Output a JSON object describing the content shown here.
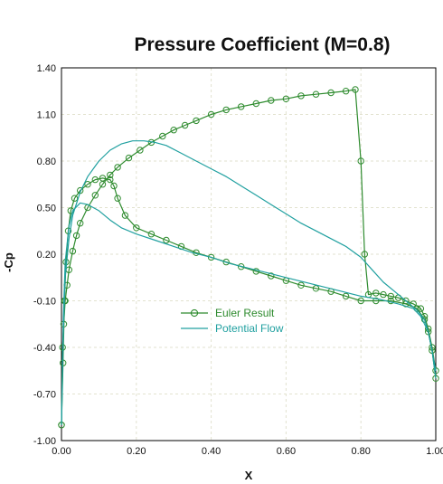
{
  "chart_data": {
    "type": "line",
    "title": "Pressure Coefficient (M=0.8)",
    "xlabel": "X",
    "ylabel": "-Cp",
    "xlim": [
      0,
      1
    ],
    "ylim": [
      -1,
      1.4
    ],
    "x_ticks": [
      "0.00",
      "0.20",
      "0.40",
      "0.60",
      "0.80",
      "1.00"
    ],
    "y_ticks": [
      "1.40",
      "1.10",
      "0.80",
      "0.50",
      "0.20",
      "-0.10",
      "-0.40",
      "-0.70",
      "-1.00"
    ],
    "grid": true,
    "legend_position": "center",
    "colors": {
      "euler": "#2e8b2e",
      "potential": "#20a0a0",
      "grid": "#e2e2cf"
    },
    "series": [
      {
        "name": "Euler Result",
        "marker": "circle",
        "segments": [
          {
            "part": "upper surface",
            "x": [
              0.0,
              0.003,
              0.006,
              0.01,
              0.015,
              0.02,
              0.03,
              0.04,
              0.05,
              0.07,
              0.09,
              0.11,
              0.13,
              0.15,
              0.18,
              0.21,
              0.24,
              0.27,
              0.3,
              0.33,
              0.36,
              0.4,
              0.44,
              0.48,
              0.52,
              0.56,
              0.6,
              0.64,
              0.68,
              0.72,
              0.76,
              0.785,
              0.8,
              0.81,
              0.82,
              0.84,
              0.86,
              0.88,
              0.9,
              0.92,
              0.94,
              0.96,
              0.97,
              0.98,
              0.99,
              1.0
            ],
            "y": [
              -0.9,
              -0.4,
              -0.25,
              -0.1,
              0.0,
              0.1,
              0.22,
              0.32,
              0.4,
              0.5,
              0.58,
              0.65,
              0.71,
              0.76,
              0.82,
              0.87,
              0.92,
              0.96,
              1.0,
              1.03,
              1.06,
              1.1,
              1.13,
              1.15,
              1.17,
              1.19,
              1.2,
              1.22,
              1.23,
              1.24,
              1.25,
              1.26,
              0.8,
              0.2,
              -0.06,
              -0.05,
              -0.06,
              -0.07,
              -0.08,
              -0.1,
              -0.12,
              -0.15,
              -0.2,
              -0.28,
              -0.4,
              -0.55
            ]
          },
          {
            "part": "lower surface",
            "x": [
              0.0,
              0.004,
              0.008,
              0.012,
              0.018,
              0.025,
              0.035,
              0.05,
              0.07,
              0.09,
              0.11,
              0.13,
              0.14,
              0.15,
              0.17,
              0.2,
              0.24,
              0.28,
              0.32,
              0.36,
              0.4,
              0.44,
              0.48,
              0.52,
              0.56,
              0.6,
              0.64,
              0.68,
              0.72,
              0.76,
              0.8,
              0.84,
              0.88,
              0.92,
              0.95,
              0.97,
              0.98,
              0.99,
              1.0
            ],
            "y": [
              -0.9,
              -0.5,
              -0.1,
              0.15,
              0.35,
              0.48,
              0.56,
              0.61,
              0.65,
              0.68,
              0.69,
              0.68,
              0.64,
              0.56,
              0.45,
              0.37,
              0.33,
              0.29,
              0.25,
              0.21,
              0.18,
              0.15,
              0.12,
              0.09,
              0.06,
              0.03,
              0.0,
              -0.02,
              -0.04,
              -0.07,
              -0.1,
              -0.1,
              -0.1,
              -0.12,
              -0.15,
              -0.22,
              -0.3,
              -0.42,
              -0.6
            ]
          }
        ]
      },
      {
        "name": "Potential Flow",
        "marker": "none",
        "segments": [
          {
            "part": "upper surface",
            "x": [
              0.0,
              0.005,
              0.01,
              0.02,
              0.03,
              0.05,
              0.07,
              0.1,
              0.13,
              0.16,
              0.19,
              0.22,
              0.25,
              0.28,
              0.32,
              0.36,
              0.4,
              0.44,
              0.48,
              0.52,
              0.56,
              0.6,
              0.64,
              0.68,
              0.72,
              0.76,
              0.8,
              0.83,
              0.86,
              0.89,
              0.92,
              0.95,
              0.97,
              0.98,
              0.99,
              1.0
            ],
            "y": [
              -0.9,
              -0.3,
              0.05,
              0.3,
              0.45,
              0.6,
              0.7,
              0.8,
              0.87,
              0.91,
              0.93,
              0.93,
              0.92,
              0.9,
              0.85,
              0.8,
              0.75,
              0.7,
              0.64,
              0.58,
              0.52,
              0.46,
              0.4,
              0.35,
              0.3,
              0.25,
              0.18,
              0.1,
              0.02,
              -0.04,
              -0.1,
              -0.16,
              -0.22,
              -0.3,
              -0.42,
              -0.55
            ]
          },
          {
            "part": "lower surface",
            "x": [
              0.0,
              0.005,
              0.01,
              0.02,
              0.03,
              0.05,
              0.07,
              0.1,
              0.13,
              0.16,
              0.2,
              0.25,
              0.3,
              0.35,
              0.4,
              0.45,
              0.5,
              0.55,
              0.6,
              0.65,
              0.7,
              0.75,
              0.8,
              0.85,
              0.9,
              0.94,
              0.96,
              0.98,
              0.99,
              1.0
            ],
            "y": [
              -0.9,
              -0.2,
              0.15,
              0.38,
              0.48,
              0.53,
              0.52,
              0.48,
              0.42,
              0.37,
              0.33,
              0.29,
              0.25,
              0.21,
              0.18,
              0.14,
              0.11,
              0.08,
              0.05,
              0.02,
              -0.01,
              -0.04,
              -0.07,
              -0.09,
              -0.12,
              -0.15,
              -0.2,
              -0.3,
              -0.42,
              -0.6
            ]
          }
        ]
      }
    ]
  }
}
